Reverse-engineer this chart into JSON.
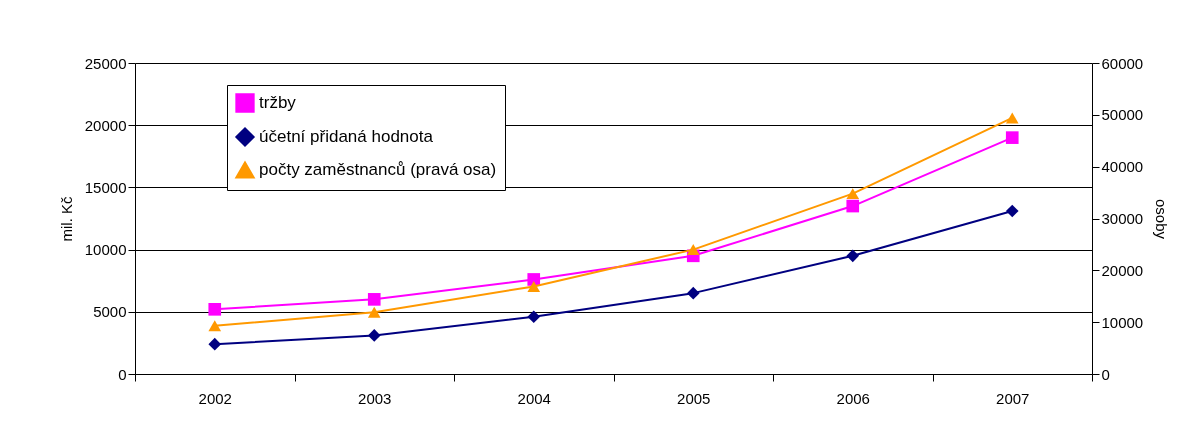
{
  "chart_data": {
    "type": "line",
    "categories": [
      "2002",
      "2003",
      "2004",
      "2005",
      "2006",
      "2007"
    ],
    "ylabel": "mil. Kč",
    "y2label": "osoby",
    "ylim": [
      0,
      25000
    ],
    "yticks": [
      0,
      5000,
      10000,
      15000,
      20000,
      25000
    ],
    "y2lim": [
      0,
      60000
    ],
    "y2ticks": [
      0,
      10000,
      20000,
      30000,
      40000,
      50000,
      60000
    ],
    "grid": "y",
    "legend": "top left",
    "series": [
      {
        "name": "tržby",
        "color": "#ff00ff",
        "marker": "square",
        "values": [
          5200,
          6000,
          7600,
          9500,
          13500,
          19000
        ]
      },
      {
        "name": "účetní přidaná hodnota",
        "color": "#000080",
        "marker": "diamond",
        "values": [
          2400,
          3100,
          4600,
          6500,
          9500,
          13100
        ]
      },
      {
        "name": "počty zaměstnanců (pravá osa)",
        "color": "#ff9900",
        "marker": "triangle",
        "axis": "y2",
        "values": [
          9300,
          11900,
          16900,
          24000,
          34800,
          49400
        ]
      }
    ]
  }
}
